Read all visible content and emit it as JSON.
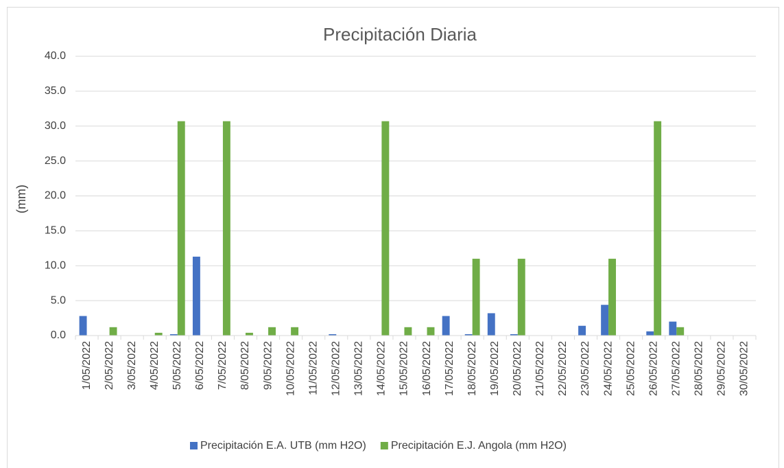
{
  "chart_data": {
    "type": "bar",
    "title": "Precipitación Diaria",
    "y_label": "(mm)",
    "categories": [
      "1/05/2022",
      "2/05/2022",
      "3/05/2022",
      "4/05/2022",
      "5/05/2022",
      "6/05/2022",
      "7/05/2022",
      "8/05/2022",
      "9/05/2022",
      "10/05/2022",
      "11/05/2022",
      "12/05/2022",
      "13/05/2022",
      "14/05/2022",
      "15/05/2022",
      "16/05/2022",
      "17/05/2022",
      "18/05/2022",
      "19/05/2022",
      "20/05/2022",
      "21/05/2022",
      "22/05/2022",
      "23/05/2022",
      "24/05/2022",
      "25/05/2022",
      "26/05/2022",
      "27/05/2022",
      "28/05/2022",
      "29/05/2022",
      "30/05/2022"
    ],
    "series": [
      {
        "name": "Precipitación E.A. UTB (mm H2O)",
        "color": "#4472c4",
        "values": [
          2.8,
          0,
          0,
          0,
          0.2,
          11.3,
          0,
          0,
          0,
          0,
          0,
          0.2,
          0,
          0,
          0,
          0,
          2.8,
          0.2,
          3.2,
          0.2,
          0,
          0,
          1.4,
          4.4,
          0,
          0.6,
          2.0,
          0,
          0,
          0
        ]
      },
      {
        "name": "Precipitación E.J. Angola (mm H2O)",
        "color": "#70ad47",
        "values": [
          0,
          1.2,
          0,
          0.4,
          30.7,
          0,
          30.7,
          0.4,
          1.2,
          1.2,
          0,
          0,
          0,
          30.7,
          1.2,
          1.2,
          0,
          11,
          0,
          11,
          0,
          0,
          0,
          11,
          0,
          30.7,
          1.2,
          0,
          0,
          0
        ]
      }
    ],
    "ylim": [
      0,
      40
    ],
    "yticks": [
      {
        "value": 0,
        "label": "0.0"
      },
      {
        "value": 5,
        "label": "5.0"
      },
      {
        "value": 10,
        "label": "10.0"
      },
      {
        "value": 15,
        "label": "15.0"
      },
      {
        "value": 20,
        "label": "20.0"
      },
      {
        "value": 25,
        "label": "25.0"
      },
      {
        "value": 30,
        "label": "30.0"
      },
      {
        "value": 35,
        "label": "35.0"
      },
      {
        "value": 40,
        "label": "40.0"
      }
    ],
    "grid": true,
    "legend": "bottom"
  }
}
